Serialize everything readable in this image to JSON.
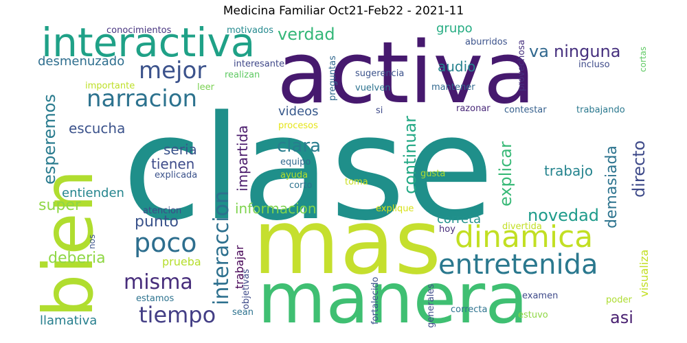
{
  "title": "Medicina Familiar Oct21-Feb22 - 2021-11",
  "words": [
    {
      "text": "clase",
      "color": "#1f8f8a"
    },
    {
      "text": "activa",
      "color": "#46196e"
    },
    {
      "text": "mas",
      "color": "#c5df2e"
    },
    {
      "text": "manera",
      "color": "#3fbf72"
    },
    {
      "text": "bien",
      "color": "#b0dd2f"
    },
    {
      "text": "interactiva",
      "color": "#1fa187"
    },
    {
      "text": "dinamica",
      "color": "#c2df23"
    },
    {
      "text": "entretenida",
      "color": "#2a788e"
    },
    {
      "text": "narracion",
      "color": "#2c728e"
    },
    {
      "text": "mejor",
      "color": "#3b528b"
    },
    {
      "text": "poco",
      "color": "#2d6e8e"
    },
    {
      "text": "interaccion",
      "color": "#2d708e"
    },
    {
      "text": "tiempo",
      "color": "#433e85"
    },
    {
      "text": "misma",
      "color": "#472d7b"
    },
    {
      "text": "va",
      "color": "#31688e"
    },
    {
      "text": "ninguna",
      "color": "#46307e"
    },
    {
      "text": "verdad",
      "color": "#35b779"
    },
    {
      "text": "grupo",
      "color": "#25ac82"
    },
    {
      "text": "audio",
      "color": "#26828e"
    },
    {
      "text": "clara",
      "color": "#287d8e"
    },
    {
      "text": "continuar",
      "color": "#22a884"
    },
    {
      "text": "explicar",
      "color": "#38b977"
    },
    {
      "text": "directo",
      "color": "#3e4a89"
    },
    {
      "text": "demasiada",
      "color": "#2c738e"
    },
    {
      "text": "esperemos",
      "color": "#297b8e"
    },
    {
      "text": "escucha",
      "color": "#3b528b"
    },
    {
      "text": "seria",
      "color": "#3a538b"
    },
    {
      "text": "tienen",
      "color": "#3e4c8a"
    },
    {
      "text": "impartida",
      "color": "#48186a"
    },
    {
      "text": "trabajo",
      "color": "#25848e"
    },
    {
      "text": "videos",
      "color": "#38598c"
    },
    {
      "text": "desmenuzado",
      "color": "#2e6e8e"
    },
    {
      "text": "entienden",
      "color": "#25858e"
    },
    {
      "text": "super",
      "color": "#8fd744"
    },
    {
      "text": "punto",
      "color": "#3a538b"
    },
    {
      "text": "informacion",
      "color": "#7fd34e"
    },
    {
      "text": "novedad",
      "color": "#1e9b8a"
    },
    {
      "text": "correta",
      "color": "#21918c"
    },
    {
      "text": "deberia",
      "color": "#8fd744"
    },
    {
      "text": "prueba",
      "color": "#b5de2b"
    },
    {
      "text": "llamativa",
      "color": "#277f8e"
    },
    {
      "text": "trabajar",
      "color": "#440154"
    },
    {
      "text": "asi",
      "color": "#481f70"
    },
    {
      "text": "visualiza",
      "color": "#c2df23"
    },
    {
      "text": "conocimientos",
      "color": "#46337f"
    },
    {
      "text": "motivados",
      "color": "#23898e"
    },
    {
      "text": "preguntas",
      "color": "#31688e"
    },
    {
      "text": "aburridos",
      "color": "#3b528b"
    },
    {
      "text": "provechosa",
      "color": "#46307e"
    },
    {
      "text": "cortas",
      "color": "#5ec962"
    },
    {
      "text": "interesante",
      "color": "#3f4788"
    },
    {
      "text": "realizan",
      "color": "#5ec962"
    },
    {
      "text": "importante",
      "color": "#bddf26"
    },
    {
      "text": "leer",
      "color": "#7ad151"
    },
    {
      "text": "sugerencia",
      "color": "#3b528b"
    },
    {
      "text": "vuelven",
      "color": "#2c728e"
    },
    {
      "text": "incluso",
      "color": "#3e4a89"
    },
    {
      "text": "mantener",
      "color": "#31688e"
    },
    {
      "text": "razonar",
      "color": "#482878"
    },
    {
      "text": "contestar",
      "color": "#35608d"
    },
    {
      "text": "trabajando",
      "color": "#2a788e"
    },
    {
      "text": "si",
      "color": "#3e4a89"
    },
    {
      "text": "procesos",
      "color": "#e5e419"
    },
    {
      "text": "equipo",
      "color": "#31688e"
    },
    {
      "text": "explicada",
      "color": "#3b528b"
    },
    {
      "text": "ayuda",
      "color": "#b5de2b"
    },
    {
      "text": "corto",
      "color": "#2c728e"
    },
    {
      "text": "gusta",
      "color": "#addc30"
    },
    {
      "text": "toma",
      "color": "#c8e020"
    },
    {
      "text": "atencion",
      "color": "#3e4a89"
    },
    {
      "text": "explique",
      "color": "#d8e219"
    },
    {
      "text": "hoy",
      "color": "#472c7a"
    },
    {
      "text": "divertida",
      "color": "#c2df23"
    },
    {
      "text": "nos",
      "color": "#3b528b"
    },
    {
      "text": "estamos",
      "color": "#2c728e"
    },
    {
      "text": "objetivas",
      "color": "#3e4a89"
    },
    {
      "text": "sean",
      "color": "#2c728e"
    },
    {
      "text": "fortalecido",
      "color": "#3b528b"
    },
    {
      "text": "generales",
      "color": "#3e4c8a"
    },
    {
      "text": "examen",
      "color": "#3e4a89"
    },
    {
      "text": "poder",
      "color": "#addc30"
    },
    {
      "text": "correcta",
      "color": "#2c728e"
    },
    {
      "text": "estuvo",
      "color": "#8fd744"
    }
  ]
}
